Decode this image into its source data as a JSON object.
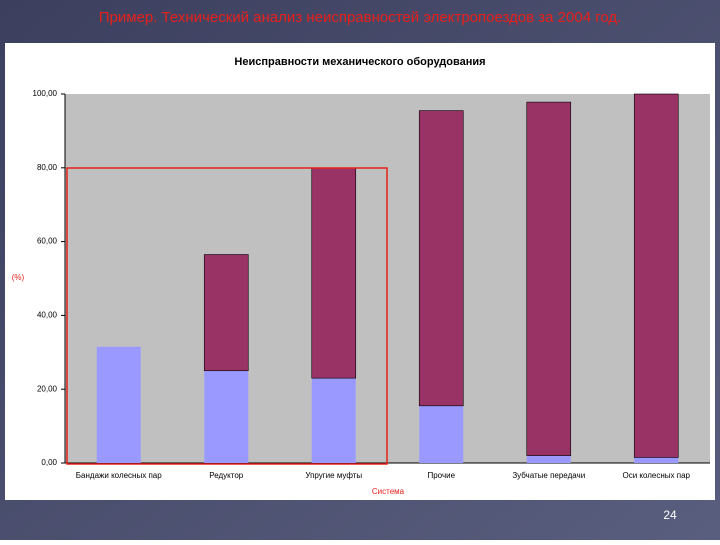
{
  "slide_title": "Пример. Технический анализ неисправностей электропоездов за 2004 год.",
  "page_number": "24",
  "chart_data": {
    "type": "stacked-bar",
    "title": "Неисправности механического оборудования",
    "y_label": "(%)",
    "x_label": "Система",
    "categories": [
      "Бандажи колесных пар",
      "Редуктор",
      "Упругие муфты",
      "Прочие",
      "Зубчатые передачи",
      "Оси колесных пар"
    ],
    "series": [
      {
        "color": "#9999ff",
        "values": [
          31.5,
          25,
          23,
          15.5,
          2,
          1.5
        ]
      },
      {
        "color": "#993366",
        "values": [
          0,
          31.5,
          57,
          80,
          95.8,
          98.5
        ]
      }
    ],
    "ylim": [
      0,
      100
    ],
    "yticks": [
      {
        "value": 0,
        "label": "0,00"
      },
      {
        "value": 20,
        "label": "20,00"
      },
      {
        "value": 40,
        "label": "40,00"
      },
      {
        "value": 60,
        "label": "60,00"
      },
      {
        "value": 80,
        "label": "80,00"
      },
      {
        "value": 100,
        "label": "100,00"
      }
    ],
    "grid": false
  }
}
